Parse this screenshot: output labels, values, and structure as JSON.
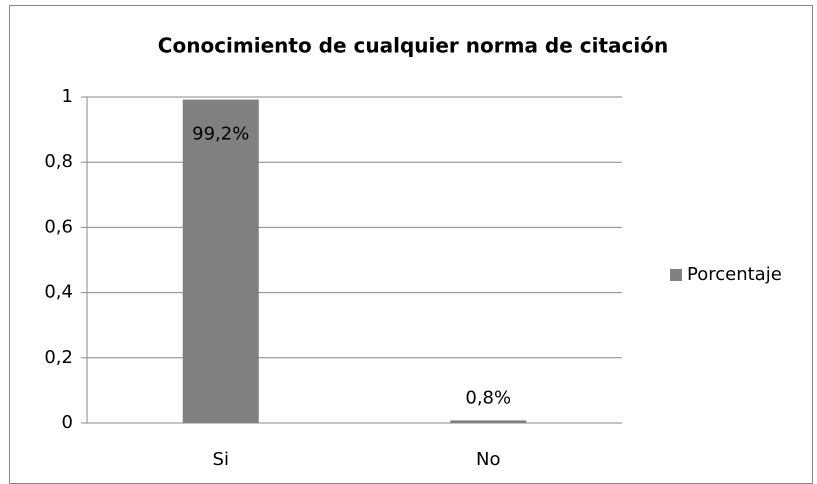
{
  "chart_data": {
    "type": "bar",
    "title": "Conocimiento de cualquier norma de citación",
    "categories": [
      "Si",
      "No"
    ],
    "series": [
      {
        "name": "Porcentaje",
        "color": "#808080",
        "values": [
          0.992,
          0.008
        ],
        "value_labels": [
          "99,2%",
          "0,8%"
        ]
      }
    ],
    "ylim": [
      0,
      1
    ],
    "yticks": [
      0,
      {
        "value": 0.2,
        "label": "0,2"
      },
      {
        "value": 0.4,
        "label": "0,4"
      },
      {
        "value": 0.6,
        "label": "0,6"
      },
      {
        "value": 0.8,
        "label": "0,8"
      },
      1
    ],
    "grid": true,
    "legend": "right"
  }
}
